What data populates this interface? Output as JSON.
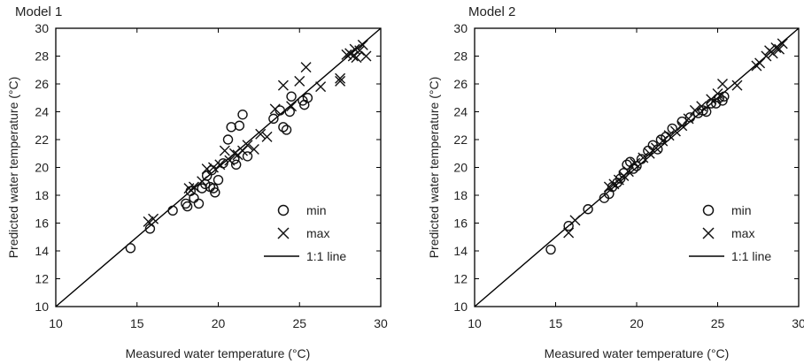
{
  "chart_data": [
    {
      "type": "scatter",
      "title": "Model 1",
      "xlabel": "Measured water temperature (°C)",
      "ylabel": "Predicted water temperature (°C)",
      "xlim": [
        10,
        30
      ],
      "ylim": [
        10,
        30
      ],
      "x_ticks": [
        "10",
        "15",
        "20",
        "25",
        "30"
      ],
      "y_ticks": [
        "10",
        "12",
        "14",
        "16",
        "18",
        "20",
        "22",
        "24",
        "26",
        "28",
        "30"
      ],
      "legend": {
        "position": "center-right",
        "entries": [
          "min",
          "max",
          "1:1 line"
        ]
      },
      "grid": false,
      "series": [
        {
          "name": "min",
          "marker": "circle",
          "points": [
            [
              14.6,
              14.2
            ],
            [
              15.8,
              15.6
            ],
            [
              17.2,
              16.9
            ],
            [
              18.0,
              17.4
            ],
            [
              18.1,
              17.2
            ],
            [
              18.3,
              18.3
            ],
            [
              18.5,
              17.8
            ],
            [
              18.8,
              17.4
            ],
            [
              19.0,
              18.5
            ],
            [
              19.2,
              18.8
            ],
            [
              19.3,
              19.4
            ],
            [
              19.5,
              18.6
            ],
            [
              19.6,
              19.8
            ],
            [
              19.7,
              18.5
            ],
            [
              19.8,
              18.2
            ],
            [
              20.0,
              19.1
            ],
            [
              20.3,
              20.3
            ],
            [
              20.6,
              22.0
            ],
            [
              20.8,
              22.9
            ],
            [
              21.0,
              20.6
            ],
            [
              21.1,
              20.2
            ],
            [
              21.3,
              23.0
            ],
            [
              21.5,
              23.8
            ],
            [
              21.8,
              20.8
            ],
            [
              23.4,
              23.5
            ],
            [
              23.8,
              24.1
            ],
            [
              24.0,
              22.9
            ],
            [
              24.2,
              22.7
            ],
            [
              24.4,
              24.0
            ],
            [
              24.5,
              25.1
            ],
            [
              25.2,
              24.8
            ],
            [
              25.3,
              24.5
            ],
            [
              25.5,
              25.0
            ]
          ]
        },
        {
          "name": "max",
          "marker": "cross",
          "points": [
            [
              15.7,
              16.1
            ],
            [
              16.0,
              16.3
            ],
            [
              18.2,
              18.5
            ],
            [
              18.5,
              18.6
            ],
            [
              19.0,
              19.0
            ],
            [
              19.3,
              19.9
            ],
            [
              19.7,
              20.0
            ],
            [
              20.1,
              20.2
            ],
            [
              20.4,
              21.2
            ],
            [
              20.7,
              20.5
            ],
            [
              21.0,
              21.0
            ],
            [
              21.2,
              20.9
            ],
            [
              21.5,
              21.2
            ],
            [
              21.8,
              21.6
            ],
            [
              22.2,
              21.3
            ],
            [
              22.6,
              22.4
            ],
            [
              23.0,
              22.2
            ],
            [
              23.5,
              24.2
            ],
            [
              24.0,
              25.9
            ],
            [
              24.5,
              24.4
            ],
            [
              25.0,
              26.2
            ],
            [
              25.4,
              27.2
            ],
            [
              26.3,
              25.8
            ],
            [
              27.5,
              26.4
            ],
            [
              27.5,
              26.2
            ],
            [
              27.9,
              28.1
            ],
            [
              28.1,
              28.2
            ],
            [
              28.3,
              28.0
            ],
            [
              28.5,
              27.9
            ],
            [
              28.7,
              28.4
            ],
            [
              28.9,
              28.8
            ],
            [
              29.1,
              28.0
            ],
            [
              28.4,
              28.5
            ]
          ]
        }
      ],
      "reference_line": {
        "name": "1:1 line",
        "from": [
          10,
          10
        ],
        "to": [
          30,
          30
        ]
      }
    },
    {
      "type": "scatter",
      "title": "Model 2",
      "xlabel": "Measured water temperature (°C)",
      "ylabel": "Predicted water temperature (°C)",
      "xlim": [
        10,
        30
      ],
      "ylim": [
        10,
        30
      ],
      "x_ticks": [
        "10",
        "15",
        "20",
        "25",
        "30"
      ],
      "y_ticks": [
        "10",
        "12",
        "14",
        "16",
        "18",
        "20",
        "22",
        "24",
        "26",
        "28",
        "30"
      ],
      "legend": {
        "position": "center-right",
        "entries": [
          "min",
          "max",
          "1:1 line"
        ]
      },
      "grid": false,
      "series": [
        {
          "name": "min",
          "marker": "circle",
          "points": [
            [
              14.7,
              14.1
            ],
            [
              15.8,
              15.8
            ],
            [
              17.0,
              17.0
            ],
            [
              18.0,
              17.8
            ],
            [
              18.3,
              18.1
            ],
            [
              18.5,
              18.6
            ],
            [
              18.8,
              18.9
            ],
            [
              19.0,
              19.2
            ],
            [
              19.2,
              19.6
            ],
            [
              19.4,
              20.2
            ],
            [
              19.6,
              20.4
            ],
            [
              19.8,
              19.9
            ],
            [
              20.0,
              20.1
            ],
            [
              20.3,
              20.6
            ],
            [
              20.7,
              21.2
            ],
            [
              21.0,
              21.6
            ],
            [
              21.3,
              21.3
            ],
            [
              21.5,
              22.0
            ],
            [
              21.8,
              22.2
            ],
            [
              22.2,
              22.8
            ],
            [
              22.8,
              23.3
            ],
            [
              23.3,
              23.6
            ],
            [
              23.8,
              23.9
            ],
            [
              24.1,
              24.1
            ],
            [
              24.3,
              24.0
            ],
            [
              24.6,
              24.6
            ],
            [
              24.9,
              24.6
            ],
            [
              25.1,
              25.0
            ],
            [
              25.3,
              24.8
            ],
            [
              25.4,
              25.1
            ]
          ]
        },
        {
          "name": "max",
          "marker": "cross",
          "points": [
            [
              15.8,
              15.3
            ],
            [
              16.2,
              16.2
            ],
            [
              18.3,
              18.6
            ],
            [
              18.6,
              18.8
            ],
            [
              18.9,
              19.1
            ],
            [
              19.2,
              19.4
            ],
            [
              19.5,
              19.7
            ],
            [
              19.9,
              20.3
            ],
            [
              20.4,
              20.7
            ],
            [
              20.8,
              21.0
            ],
            [
              21.2,
              21.4
            ],
            [
              21.6,
              21.9
            ],
            [
              22.0,
              22.3
            ],
            [
              22.4,
              22.6
            ],
            [
              22.8,
              23.0
            ],
            [
              23.2,
              23.5
            ],
            [
              23.6,
              24.1
            ],
            [
              24.0,
              24.4
            ],
            [
              24.6,
              24.9
            ],
            [
              25.0,
              25.3
            ],
            [
              25.3,
              26.0
            ],
            [
              26.2,
              25.9
            ],
            [
              27.4,
              27.3
            ],
            [
              27.6,
              27.5
            ],
            [
              28.0,
              28.0
            ],
            [
              28.2,
              28.4
            ],
            [
              28.4,
              28.2
            ],
            [
              28.6,
              28.6
            ],
            [
              28.8,
              28.5
            ],
            [
              29.0,
              28.9
            ]
          ]
        }
      ],
      "reference_line": {
        "name": "1:1 line",
        "from": [
          10,
          10
        ],
        "to": [
          30,
          30
        ]
      }
    }
  ]
}
